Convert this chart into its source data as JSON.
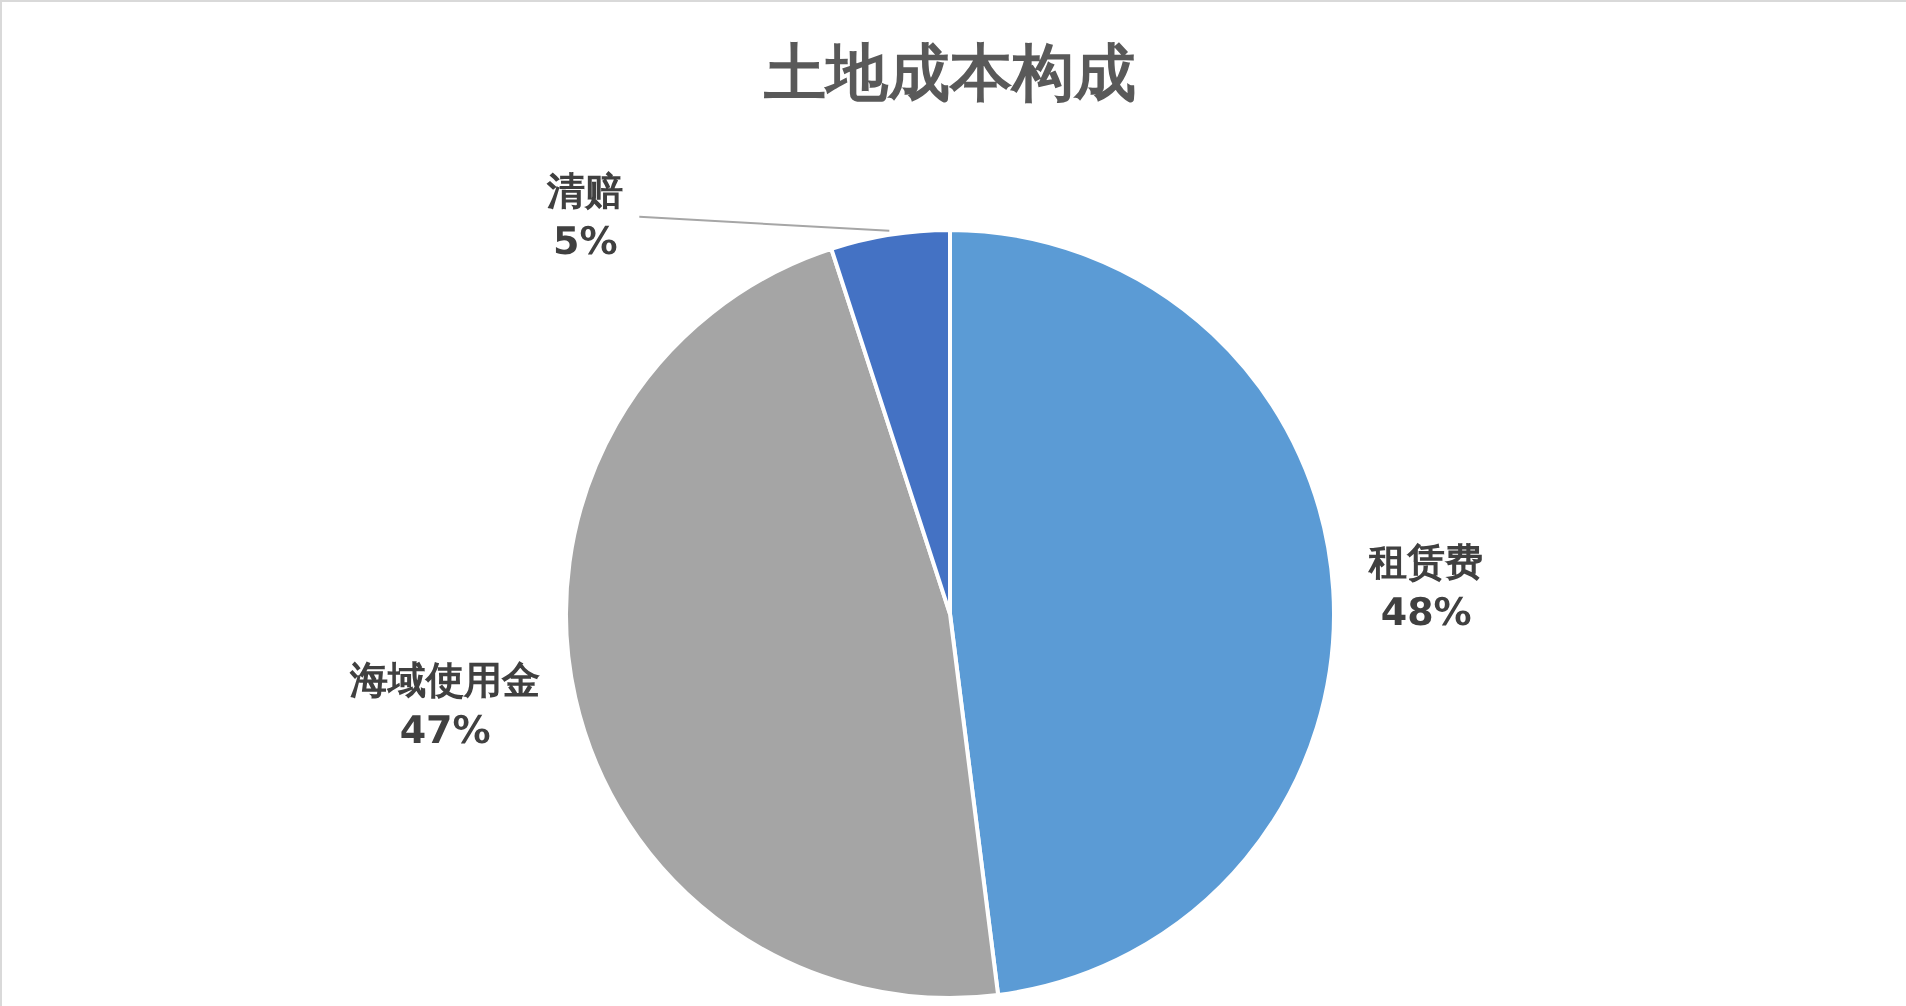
{
  "chart_data": {
    "type": "pie",
    "title": "土地成本构成",
    "categories": [
      "租赁费",
      "海域使用金",
      "清赔"
    ],
    "values": [
      48,
      47,
      5
    ],
    "colors": [
      "#5b9bd5",
      "#a5a5a5",
      "#4472c4"
    ],
    "value_labels": [
      "48%",
      "47%",
      "5%"
    ]
  }
}
